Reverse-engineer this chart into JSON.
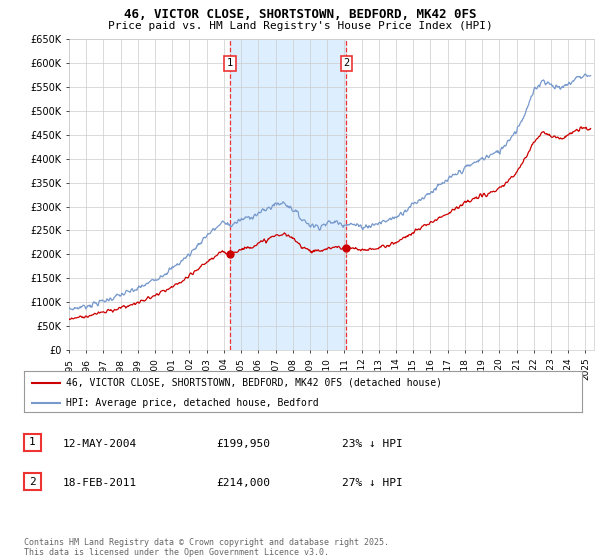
{
  "title": "46, VICTOR CLOSE, SHORTSTOWN, BEDFORD, MK42 0FS",
  "subtitle": "Price paid vs. HM Land Registry's House Price Index (HPI)",
  "ylabel_ticks": [
    "£0",
    "£50K",
    "£100K",
    "£150K",
    "£200K",
    "£250K",
    "£300K",
    "£350K",
    "£400K",
    "£450K",
    "£500K",
    "£550K",
    "£600K",
    "£650K"
  ],
  "ylim": [
    0,
    650000
  ],
  "ytick_vals": [
    0,
    50000,
    100000,
    150000,
    200000,
    250000,
    300000,
    350000,
    400000,
    450000,
    500000,
    550000,
    600000,
    650000
  ],
  "xlim_start": 1995.0,
  "xlim_end": 2025.5,
  "sale1_date": 2004.36,
  "sale1_price": 199950,
  "sale1_label": "1",
  "sale2_date": 2011.12,
  "sale2_price": 214000,
  "sale2_label": "2",
  "shade_color": "#ddeeff",
  "vline_color": "#ee3333",
  "red_line_color": "#cc0000",
  "blue_line_color": "#7799cc",
  "legend_line1": "46, VICTOR CLOSE, SHORTSTOWN, BEDFORD, MK42 0FS (detached house)",
  "legend_line2": "HPI: Average price, detached house, Bedford",
  "table_row1_num": "1",
  "table_row1_date": "12-MAY-2004",
  "table_row1_price": "£199,950",
  "table_row1_hpi": "23% ↓ HPI",
  "table_row2_num": "2",
  "table_row2_date": "18-FEB-2011",
  "table_row2_price": "£214,000",
  "table_row2_hpi": "27% ↓ HPI",
  "footer": "Contains HM Land Registry data © Crown copyright and database right 2025.\nThis data is licensed under the Open Government Licence v3.0.",
  "background_color": "#ffffff",
  "grid_color": "#cccccc"
}
